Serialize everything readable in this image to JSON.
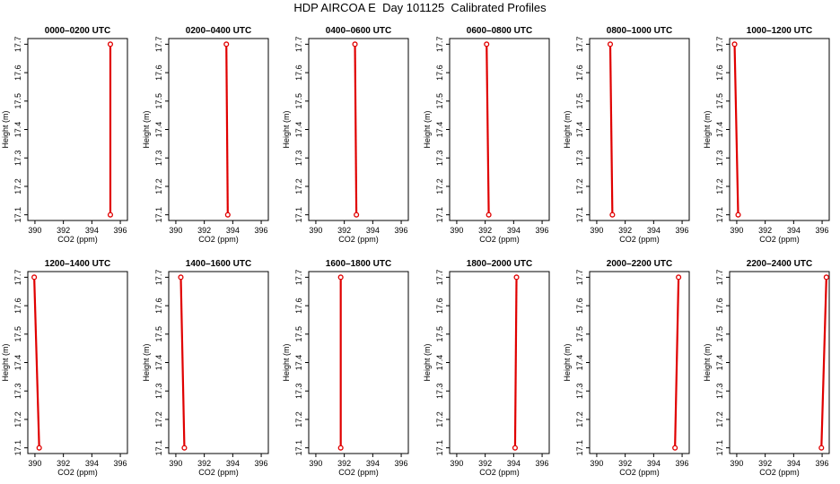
{
  "title": "HDP AIRCOA E  Day 101125  Calibrated Profiles",
  "colors": {
    "profile": "#e00000",
    "axis": "#000000"
  },
  "chart_data": {
    "type": "line",
    "xlabel": "CO2 (ppm)",
    "ylabel": "Height (m)",
    "xlim": [
      389.5,
      396.5
    ],
    "ylim": [
      17.08,
      17.72
    ],
    "xticks": [
      "390",
      "392",
      "394",
      "396"
    ],
    "yticks": [
      "17.1",
      "17.2",
      "17.3",
      "17.4",
      "17.5",
      "17.6",
      "17.7"
    ],
    "grid": false,
    "panels": [
      {
        "title": "0000–0200 UTC",
        "points": [
          [
            395.3,
            17.1
          ],
          [
            395.3,
            17.7
          ]
        ]
      },
      {
        "title": "0200–0400 UTC",
        "points": [
          [
            393.65,
            17.1
          ],
          [
            393.55,
            17.7
          ]
        ]
      },
      {
        "title": "0400–0600 UTC",
        "points": [
          [
            392.85,
            17.1
          ],
          [
            392.75,
            17.7
          ]
        ]
      },
      {
        "title": "0600–0800 UTC",
        "points": [
          [
            392.25,
            17.1
          ],
          [
            392.1,
            17.7
          ]
        ]
      },
      {
        "title": "0800–1000 UTC",
        "points": [
          [
            391.1,
            17.1
          ],
          [
            390.95,
            17.7
          ]
        ]
      },
      {
        "title": "1000–1200 UTC",
        "points": [
          [
            390.1,
            17.1
          ],
          [
            389.85,
            17.7
          ]
        ]
      },
      {
        "title": "1200–1400 UTC",
        "points": [
          [
            390.3,
            17.1
          ],
          [
            389.95,
            17.7
          ]
        ]
      },
      {
        "title": "1400–1600 UTC",
        "points": [
          [
            390.6,
            17.1
          ],
          [
            390.35,
            17.7
          ]
        ]
      },
      {
        "title": "1600–1800 UTC",
        "points": [
          [
            391.75,
            17.1
          ],
          [
            391.75,
            17.7
          ]
        ]
      },
      {
        "title": "1800–2000 UTC",
        "points": [
          [
            394.1,
            17.1
          ],
          [
            394.2,
            17.7
          ]
        ]
      },
      {
        "title": "2000–2200 UTC",
        "points": [
          [
            395.5,
            17.1
          ],
          [
            395.75,
            17.7
          ]
        ]
      },
      {
        "title": "2200–2400 UTC",
        "points": [
          [
            395.95,
            17.1
          ],
          [
            396.3,
            17.7
          ]
        ]
      }
    ]
  }
}
